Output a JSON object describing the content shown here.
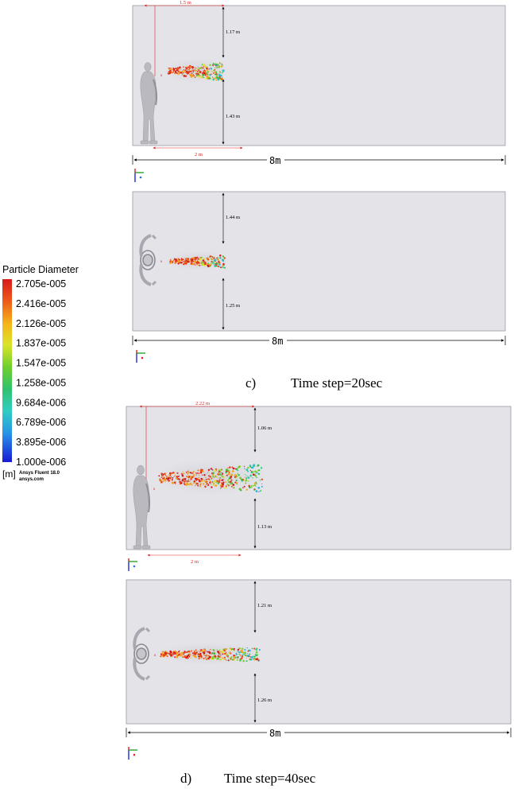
{
  "legend": {
    "title": "Particle Diameter",
    "ticks": [
      "2.705e-005",
      "2.416e-005",
      "2.126e-005",
      "1.837e-005",
      "1.547e-005",
      "1.258e-005",
      "9.684e-006",
      "6.789e-006",
      "3.895e-006",
      "1.000e-006"
    ],
    "unit": "[m]",
    "brand_line1": "Ansys Fluent 18.0",
    "brand_line2": "ansys.com",
    "colors": [
      "#d7191c",
      "#e7461b",
      "#f4a21a",
      "#dfe327",
      "#7ecb28",
      "#2fbf3b",
      "#31c8a0",
      "#27b4e0",
      "#2a6fe0",
      "#1b22d8"
    ]
  },
  "panels": [
    {
      "id": "c-side",
      "top_dim": "1.17 m",
      "bottom_dim": "1.43 m",
      "offset_label": "1.5 m",
      "floor_dim": "2 m",
      "length_label": "8m"
    },
    {
      "id": "c-top",
      "top_dim": "1.44 m",
      "bottom_dim": "1.25 m",
      "length_label": "8m"
    },
    {
      "id": "d-side",
      "top_dim": "1.06 m",
      "bottom_dim": "1.13 m",
      "offset_label": "2.22 m",
      "floor_dim": "2 m"
    },
    {
      "id": "d-top",
      "top_dim": "1.21 m",
      "bottom_dim": "1.26 m",
      "length_label": "8m"
    }
  ],
  "captions": {
    "c_letter": "c)",
    "c_text": "Time step=20sec",
    "d_letter": "d)",
    "d_text": "Time step=40sec"
  },
  "axis_labels": {
    "x": "x",
    "y": "y",
    "z": "z"
  }
}
